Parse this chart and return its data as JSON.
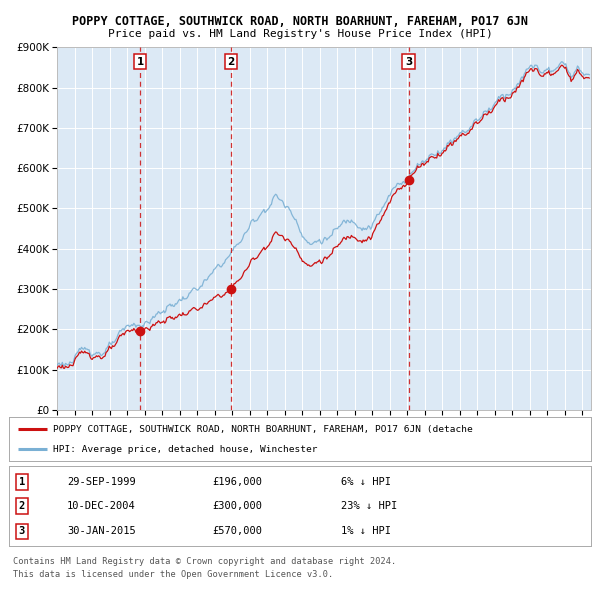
{
  "title": "POPPY COTTAGE, SOUTHWICK ROAD, NORTH BOARHUNT, FAREHAM, PO17 6JN",
  "subtitle": "Price paid vs. HM Land Registry's House Price Index (HPI)",
  "sale1_date": 1999.75,
  "sale1_price": 196000,
  "sale1_label": "29-SEP-1999",
  "sale1_text": "£196,000",
  "sale1_hpi": "6% ↓ HPI",
  "sale2_date": 2004.94,
  "sale2_price": 300000,
  "sale2_label": "10-DEC-2004",
  "sale2_text": "£300,000",
  "sale2_hpi": "23% ↓ HPI",
  "sale3_date": 2015.08,
  "sale3_price": 570000,
  "sale3_label": "30-JAN-2015",
  "sale3_text": "£570,000",
  "sale3_hpi": "1% ↓ HPI",
  "hpi_color": "#7ab0d4",
  "price_color": "#cc1111",
  "dot_color": "#cc1111",
  "vline_color": "#cc1111",
  "plot_bg": "#dce9f5",
  "grid_color": "#ffffff",
  "fig_bg": "#ffffff",
  "legend_label_price": "POPPY COTTAGE, SOUTHWICK ROAD, NORTH BOARHUNT, FAREHAM, PO17 6JN (detache",
  "legend_label_hpi": "HPI: Average price, detached house, Winchester",
  "footer1": "Contains HM Land Registry data © Crown copyright and database right 2024.",
  "footer2": "This data is licensed under the Open Government Licence v3.0.",
  "xmin": 1995.0,
  "xmax": 2025.5,
  "ymin": 0,
  "ymax": 900000,
  "yticks": [
    0,
    100000,
    200000,
    300000,
    400000,
    500000,
    600000,
    700000,
    800000,
    900000
  ]
}
